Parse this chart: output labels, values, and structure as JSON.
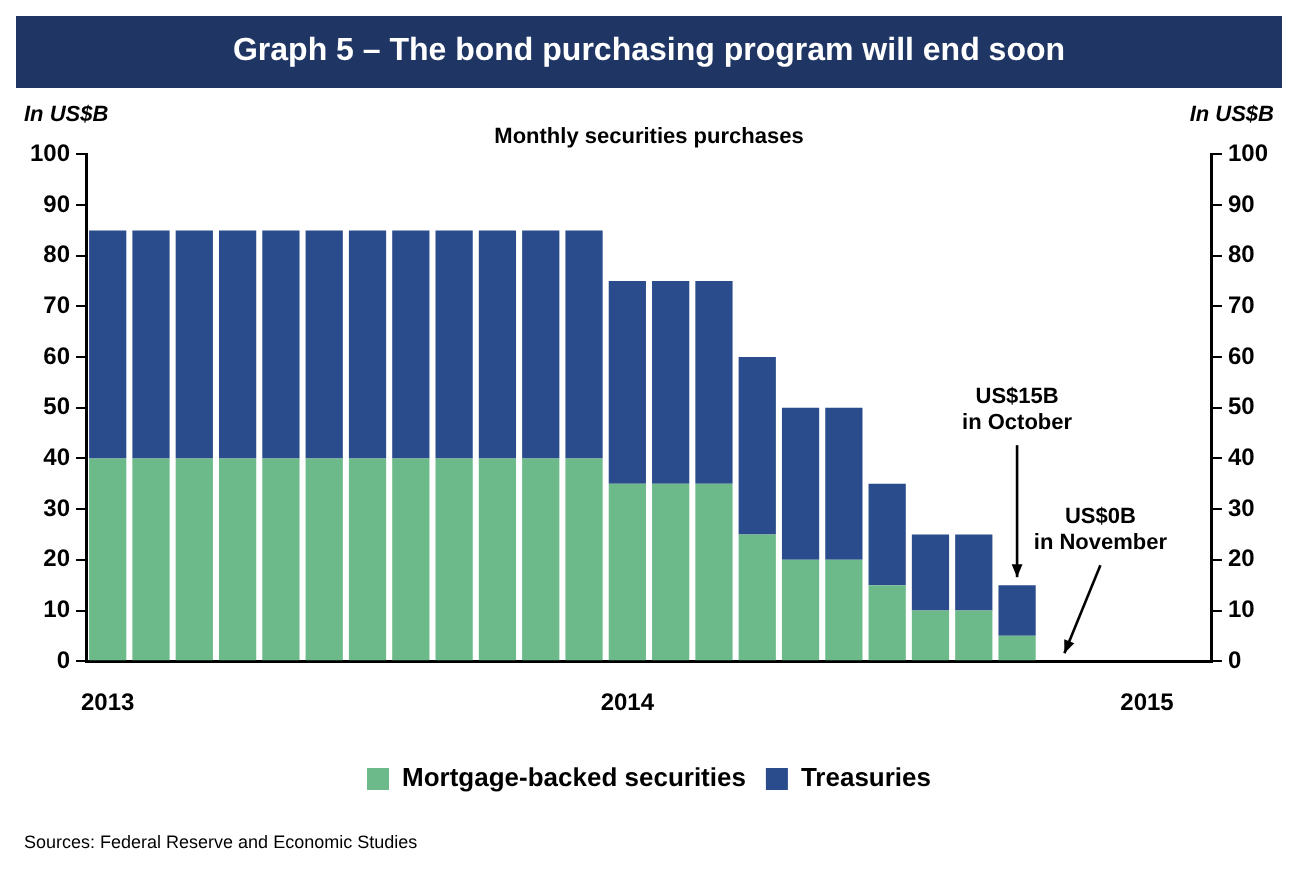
{
  "chart_data": {
    "type": "bar",
    "title": "Graph 5 – The bond purchasing program will end soon",
    "subtitle": "Monthly securities purchases",
    "ylabel": "In US$B",
    "y2label": "In US$B",
    "stacked": true,
    "categories": [
      "2013",
      null,
      null,
      null,
      null,
      null,
      null,
      null,
      null,
      null,
      null,
      null,
      "2014",
      null,
      null,
      null,
      null,
      null,
      null,
      null,
      null,
      null,
      null,
      null,
      "2015",
      null
    ],
    "series": [
      {
        "name": "Mortgage-backed securities",
        "color": "#6cba8a",
        "values": [
          40,
          40,
          40,
          40,
          40,
          40,
          40,
          40,
          40,
          40,
          40,
          40,
          35,
          35,
          35,
          25,
          20,
          20,
          15,
          10,
          10,
          5,
          0,
          null,
          null,
          null
        ]
      },
      {
        "name": "Treasuries",
        "color": "#2b4c8c",
        "values": [
          45,
          45,
          45,
          45,
          45,
          45,
          45,
          45,
          45,
          45,
          45,
          45,
          40,
          40,
          40,
          35,
          30,
          30,
          20,
          15,
          15,
          10,
          0,
          null,
          null,
          null
        ]
      }
    ],
    "ylim": [
      0,
      100
    ],
    "yticks": [
      0,
      10,
      20,
      30,
      40,
      50,
      60,
      70,
      80,
      90,
      100
    ],
    "y2lim": [
      0,
      100
    ],
    "y2ticks": [
      0,
      10,
      20,
      30,
      40,
      50,
      60,
      70,
      80,
      90,
      100
    ],
    "legend": "bottom",
    "grid": false,
    "annotations": [
      {
        "text": "US$15B\nin October",
        "y": 15
      },
      "US$0B\nin November",
      "Sources: Federal Reserve and Economic Studies"
    ]
  }
}
